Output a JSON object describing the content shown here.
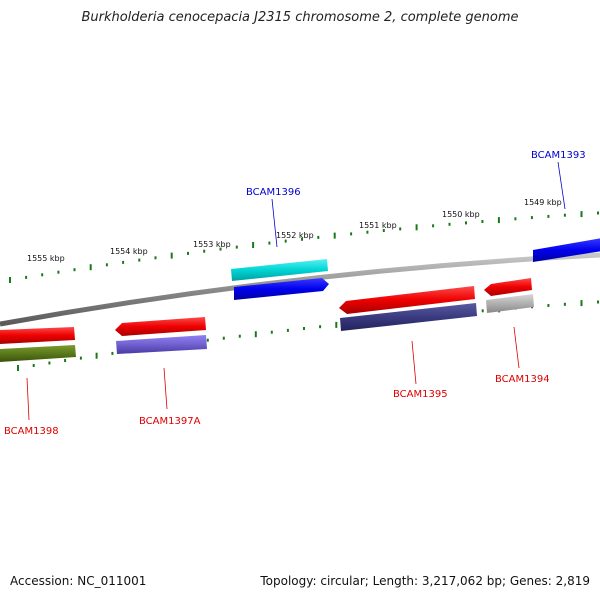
{
  "title": "Burkholderia cenocepacia J2315 chromosome 2, complete genome",
  "footer": {
    "accession": "Accession: NC_011001",
    "summary": "Topology: circular; Length: 3,217,062 bp; Genes: 2,819"
  },
  "ruler_labels": [
    "1555 kbp",
    "1554 kbp",
    "1553 kbp",
    "1552 kbp",
    "1551 kbp",
    "1550 kbp",
    "1549 kbp"
  ],
  "genes": [
    {
      "name": "BCAM1393",
      "strand": "forward",
      "color": "#0000cc"
    },
    {
      "name": "BCAM1394",
      "strand": "reverse",
      "color": "#dd0000"
    },
    {
      "name": "BCAM1395",
      "strand": "reverse",
      "color": "#dd0000"
    },
    {
      "name": "BCAM1396",
      "strand": "forward",
      "color": "#0000cc"
    },
    {
      "name": "BCAM1397A",
      "strand": "reverse",
      "color": "#dd0000"
    },
    {
      "name": "BCAM1398",
      "strand": "reverse",
      "color": "#dd0000"
    }
  ],
  "feature_colors": {
    "cds_forward": "#0000ee",
    "rna_forward": "#00d4d4",
    "cds_reverse": "#ee0000",
    "cog_reverse_a": "#3a3a80",
    "cog_reverse_b": "#7060d0",
    "cog_reverse_c": "#b0b0b0",
    "cog_reverse_d": "#5a7a1a",
    "backbone": "#8a8a8a",
    "ticks": "#1a7a1a"
  }
}
